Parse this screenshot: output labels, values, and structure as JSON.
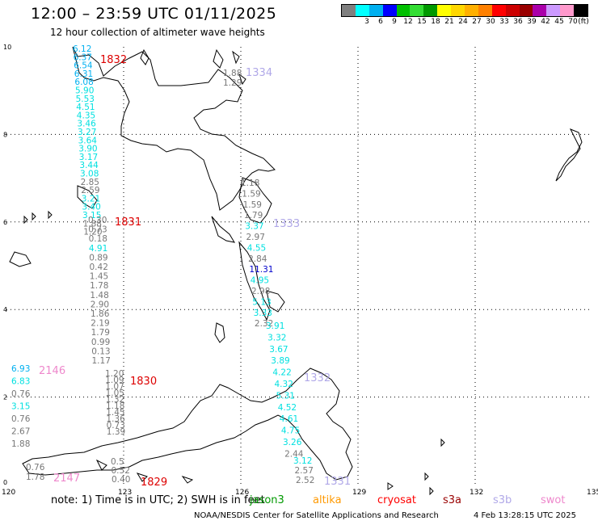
{
  "header": {
    "title": "12:00 – 23:59 UTC 01/11/2025",
    "subtitle": "12 hour collection of altimeter wave heights"
  },
  "color_scale": {
    "unit_label": "(ft)",
    "bins": [
      {
        "label": "",
        "color": "#7f7f7f"
      },
      {
        "label": "3",
        "color": "#00ffff"
      },
      {
        "label": "6",
        "color": "#00b0f0"
      },
      {
        "label": "9",
        "color": "#0000ff"
      },
      {
        "label": "12",
        "color": "#00c000"
      },
      {
        "label": "15",
        "color": "#33dd33"
      },
      {
        "label": "18",
        "color": "#009900"
      },
      {
        "label": "21",
        "color": "#ffff00"
      },
      {
        "label": "24",
        "color": "#ffd700"
      },
      {
        "label": "27",
        "color": "#ffb000"
      },
      {
        "label": "30",
        "color": "#ff8000"
      },
      {
        "label": "33",
        "color": "#ff0000"
      },
      {
        "label": "36",
        "color": "#cc0000"
      },
      {
        "label": "39",
        "color": "#990000"
      },
      {
        "label": "42",
        "color": "#aa00aa"
      },
      {
        "label": "45",
        "color": "#cc99ff"
      },
      {
        "label": "70",
        "color": "#ff99cc"
      },
      {
        "label": "",
        "color": "#000000"
      }
    ]
  },
  "axes": {
    "x_ticks": [
      "120",
      "123",
      "126",
      "129",
      "132",
      "135"
    ],
    "y_ticks": [
      "0",
      "2",
      "4",
      "6",
      "8",
      "10"
    ]
  },
  "passes": [
    {
      "id": "1832",
      "color": "#dd0000"
    },
    {
      "id": "1334",
      "color": "#b0a8e8"
    },
    {
      "id": "1831",
      "color": "#dd0000"
    },
    {
      "id": "1333",
      "color": "#b0a8e8"
    },
    {
      "id": "2146",
      "color": "#ee88cc"
    },
    {
      "id": "1830",
      "color": "#dd0000"
    },
    {
      "id": "1332",
      "color": "#b0a8e8"
    },
    {
      "id": "2147",
      "color": "#ee88cc"
    },
    {
      "id": "1829",
      "color": "#dd0000"
    },
    {
      "id": "1331",
      "color": "#b0a8e8"
    }
  ],
  "observations": {
    "track_1832": [
      {
        "v": "6.12",
        "c": "#00b0f0"
      },
      {
        "v": "6.37",
        "c": "#00b0f0"
      },
      {
        "v": "6.54",
        "c": "#00b0f0"
      },
      {
        "v": "6.31",
        "c": "#00b0f0"
      },
      {
        "v": "6.08",
        "c": "#00b0f0"
      },
      {
        "v": "5.90",
        "c": "#00e0e0"
      },
      {
        "v": "5.53",
        "c": "#00e0e0"
      },
      {
        "v": "4.51",
        "c": "#00e0e0"
      },
      {
        "v": "4.35",
        "c": "#00e0e0"
      },
      {
        "v": "3.46",
        "c": "#00e0e0"
      },
      {
        "v": "3.27",
        "c": "#00e0e0"
      },
      {
        "v": "3.64",
        "c": "#00e0e0"
      },
      {
        "v": "3.90",
        "c": "#00e0e0"
      },
      {
        "v": "3.17",
        "c": "#00e0e0"
      },
      {
        "v": "3.44",
        "c": "#00e0e0"
      },
      {
        "v": "3.08",
        "c": "#00e0e0"
      },
      {
        "v": "2.85",
        "c": "#777777"
      },
      {
        "v": "2.59",
        "c": "#777777"
      },
      {
        "v": "3.21",
        "c": "#00e0e0"
      },
      {
        "v": "3.40",
        "c": "#00e0e0"
      },
      {
        "v": "3.15",
        "c": "#00e0e0"
      },
      {
        "v": "1.88",
        "c": "#777777"
      },
      {
        "v": "1.20",
        "c": "#777777"
      }
    ],
    "track_1831": [
      {
        "v": "0.30",
        "c": "#777777"
      },
      {
        "v": "0.73",
        "c": "#777777"
      },
      {
        "v": "0.18",
        "c": "#777777"
      },
      {
        "v": "4.91",
        "c": "#00e0e0"
      },
      {
        "v": "0.89",
        "c": "#777777"
      },
      {
        "v": "0.42",
        "c": "#777777"
      },
      {
        "v": "1.45",
        "c": "#777777"
      },
      {
        "v": "1.78",
        "c": "#777777"
      },
      {
        "v": "1.48",
        "c": "#777777"
      },
      {
        "v": "2.90",
        "c": "#777777"
      },
      {
        "v": "1.86",
        "c": "#777777"
      },
      {
        "v": "2.19",
        "c": "#777777"
      },
      {
        "v": "1.79",
        "c": "#777777"
      },
      {
        "v": "0.99",
        "c": "#777777"
      },
      {
        "v": "0.13",
        "c": "#777777"
      },
      {
        "v": "1.17",
        "c": "#777777"
      }
    ],
    "track_1830": [
      {
        "v": "1.20",
        "c": "#777777"
      },
      {
        "v": "1.09",
        "c": "#777777"
      },
      {
        "v": "1.07",
        "c": "#777777"
      },
      {
        "v": "1.05",
        "c": "#777777"
      },
      {
        "v": "1.32",
        "c": "#777777"
      },
      {
        "v": "1.18",
        "c": "#777777"
      },
      {
        "v": "1.45",
        "c": "#777777"
      },
      {
        "v": "1.36",
        "c": "#777777"
      },
      {
        "v": "0.73",
        "c": "#777777"
      },
      {
        "v": "1.39",
        "c": "#777777"
      }
    ],
    "track_1829": [
      {
        "v": "0.5",
        "c": "#777777"
      },
      {
        "v": "0.52",
        "c": "#777777"
      },
      {
        "v": "0.40",
        "c": "#777777"
      }
    ],
    "track_2146": [
      {
        "v": "6.93",
        "c": "#00b0f0"
      },
      {
        "v": "6.83",
        "c": "#00e0e0"
      },
      {
        "v": "0.76",
        "c": "#777777"
      },
      {
        "v": "3.15",
        "c": "#00e0e0"
      },
      {
        "v": "0.76",
        "c": "#777777"
      },
      {
        "v": "2.67",
        "c": "#777777"
      },
      {
        "v": "1.88",
        "c": "#777777"
      }
    ],
    "track_2147": [
      {
        "v": "0.76",
        "c": "#777777"
      },
      {
        "v": "1.78",
        "c": "#777777"
      }
    ],
    "track_1334": [
      {
        "v": "1.88",
        "c": "#777777"
      },
      {
        "v": "1.29",
        "c": "#777777"
      }
    ],
    "track_1333": [
      {
        "v": "1.18",
        "c": "#777777"
      },
      {
        "v": "1.59",
        "c": "#777777"
      },
      {
        "v": "1.59",
        "c": "#777777"
      },
      {
        "v": "1.79",
        "c": "#777777"
      },
      {
        "v": "3.37",
        "c": "#00e0e0"
      },
      {
        "v": "2.97",
        "c": "#777777"
      },
      {
        "v": "4.55",
        "c": "#00e0e0"
      },
      {
        "v": "2.84",
        "c": "#777777"
      },
      {
        "v": "11.31",
        "c": "#0000cc"
      },
      {
        "v": "4.95",
        "c": "#00e0e0"
      },
      {
        "v": "2.98",
        "c": "#777777"
      },
      {
        "v": "5.13",
        "c": "#00e0e0"
      },
      {
        "v": "3.33",
        "c": "#00e0e0"
      },
      {
        "v": "2.32",
        "c": "#777777"
      }
    ],
    "track_1332": [
      {
        "v": "3.91",
        "c": "#00e0e0"
      },
      {
        "v": "3.32",
        "c": "#00e0e0"
      },
      {
        "v": "3.67",
        "c": "#00e0e0"
      },
      {
        "v": "3.89",
        "c": "#00e0e0"
      },
      {
        "v": "4.22",
        "c": "#00e0e0"
      },
      {
        "v": "4.32",
        "c": "#00e0e0"
      },
      {
        "v": "5.31",
        "c": "#00e0e0"
      },
      {
        "v": "4.52",
        "c": "#00e0e0"
      },
      {
        "v": "4.61",
        "c": "#00e0e0"
      },
      {
        "v": "4.75",
        "c": "#00e0e0"
      },
      {
        "v": "3.26",
        "c": "#00e0e0"
      },
      {
        "v": "2.44",
        "c": "#777777"
      }
    ],
    "track_1331": [
      {
        "v": "3.12",
        "c": "#00e0e0"
      },
      {
        "v": "2.57",
        "c": "#777777"
      },
      {
        "v": "2.52",
        "c": "#777777"
      }
    ]
  },
  "footer": {
    "note": "note:  1) Time is in UTC; 2) SWH is in feet",
    "satellites": [
      {
        "name": "jason3",
        "color": "#009900"
      },
      {
        "name": "altika",
        "color": "#ff9900"
      },
      {
        "name": "cryosat",
        "color": "#ff0000"
      },
      {
        "name": "s3a",
        "color": "#990000"
      },
      {
        "name": "s3b",
        "color": "#b0a8e8"
      },
      {
        "name": "swot",
        "color": "#ee88cc"
      }
    ],
    "credit": "NOAA/NESDIS Center for Satellite Applications and Research",
    "timestamp": "4 Feb 13:28:15 UTC 2025"
  }
}
